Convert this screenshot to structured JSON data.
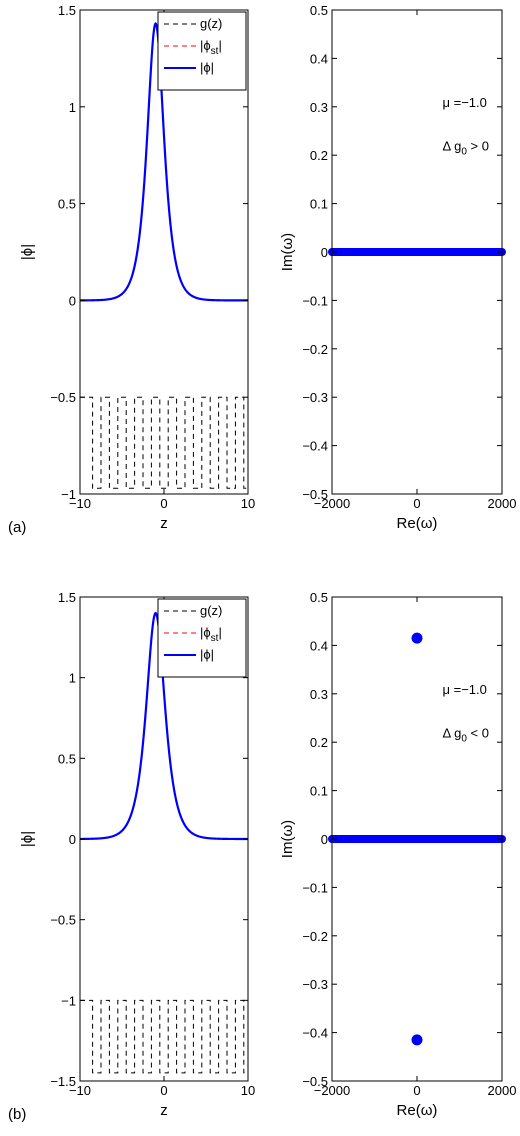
{
  "chart_data": [
    {
      "id": "a-left",
      "type": "line",
      "panel_label": "(a)",
      "xlabel": "z",
      "ylabel": "|ϕ|",
      "xlim": [
        -10,
        10
      ],
      "ylim": [
        -1,
        1.5
      ],
      "xticks": [
        -10,
        0,
        10
      ],
      "xtick_labels": [
        "−10",
        "0",
        "10"
      ],
      "yticks": [
        -1,
        -0.5,
        0,
        0.5,
        1,
        1.5
      ],
      "ytick_labels": [
        "−1",
        "−0.5",
        "0",
        "0.5",
        "1",
        "1.5"
      ],
      "grid": false,
      "legend_position": "top-right",
      "legend": [
        {
          "label": "g(z)",
          "color": "#000000",
          "style": "dashed"
        },
        {
          "label": "|ϕst|",
          "main": "|ϕ",
          "sub": "st",
          "tail": "|",
          "color": "#ff0000",
          "style": "dashed"
        },
        {
          "label": "|ϕ|",
          "color": "#0000ff",
          "style": "solid"
        }
      ],
      "series": [
        {
          "key": "phi",
          "color": "#0000ff",
          "peak_height": 1.43,
          "peak_center": -1.0,
          "width": 0.9,
          "baseline": 0.0
        },
        {
          "key": "g",
          "color": "#000000",
          "high": -0.5,
          "low": -0.97,
          "period": 2,
          "duty": 0.5,
          "start": -8.5
        }
      ]
    },
    {
      "id": "a-right",
      "type": "scatter",
      "xlabel": "Re(ω)",
      "ylabel": "Im(ω)",
      "xlim": [
        -2000,
        2000
      ],
      "ylim": [
        -0.5,
        0.5
      ],
      "xticks": [
        -2000,
        0,
        2000
      ],
      "xtick_labels": [
        "−2000",
        "0",
        "2000"
      ],
      "yticks": [
        -0.5,
        -0.4,
        -0.3,
        -0.2,
        -0.1,
        0,
        0.1,
        0.2,
        0.3,
        0.4,
        0.5
      ],
      "ytick_labels": [
        "−0.5",
        "−0.4",
        "−0.3",
        "−0.2",
        "−0.1",
        "0",
        "0.1",
        "0.2",
        "0.3",
        "0.4",
        "0.5"
      ],
      "grid": false,
      "annotations": [
        {
          "text": "μ =−1.0",
          "x": 1400,
          "y": 0.3
        },
        {
          "text": "Δ g",
          "sub": "0",
          "tail": " > 0",
          "x": 1400,
          "y": 0.21
        }
      ],
      "band": {
        "x_from": -2000,
        "x_to": 2000,
        "y": 0,
        "color": "#0000ff"
      },
      "points": []
    },
    {
      "id": "b-left",
      "type": "line",
      "panel_label": "(b)",
      "xlabel": "z",
      "ylabel": "|ϕ|",
      "xlim": [
        -10,
        10
      ],
      "ylim": [
        -1.5,
        1.5
      ],
      "xticks": [
        -10,
        0,
        10
      ],
      "xtick_labels": [
        "−10",
        "0",
        "10"
      ],
      "yticks": [
        -1.5,
        -1,
        -0.5,
        0,
        0.5,
        1,
        1.5
      ],
      "ytick_labels": [
        "−1.5",
        "−1",
        "−0.5",
        "0",
        "0.5",
        "1",
        "1.5"
      ],
      "grid": false,
      "legend_position": "top-right",
      "legend": [
        {
          "label": "g(z)",
          "color": "#000000",
          "style": "dashed"
        },
        {
          "label": "|ϕst|",
          "main": "|ϕ",
          "sub": "st",
          "tail": "|",
          "color": "#ff0000",
          "style": "dashed"
        },
        {
          "label": "|ϕ|",
          "color": "#0000ff",
          "style": "solid"
        }
      ],
      "series": [
        {
          "key": "phi",
          "color": "#0000ff",
          "peak_height": 1.4,
          "peak_center": -1.0,
          "width": 1.0,
          "baseline": 0.0
        },
        {
          "key": "g",
          "color": "#000000",
          "high": -1.0,
          "low": -1.45,
          "period": 2,
          "duty": 0.5,
          "start": -8.5
        }
      ]
    },
    {
      "id": "b-right",
      "type": "scatter",
      "xlabel": "Re(ω)",
      "ylabel": "Im(ω)",
      "xlim": [
        -2000,
        2000
      ],
      "ylim": [
        -0.5,
        0.5
      ],
      "xticks": [
        -2000,
        0,
        2000
      ],
      "xtick_labels": [
        "−2000",
        "0",
        "2000"
      ],
      "yticks": [
        -0.5,
        -0.4,
        -0.3,
        -0.2,
        -0.1,
        0,
        0.1,
        0.2,
        0.3,
        0.4,
        0.5
      ],
      "ytick_labels": [
        "−0.5",
        "−0.4",
        "−0.3",
        "−0.2",
        "−0.1",
        "0",
        "0.1",
        "0.2",
        "0.3",
        "0.4",
        "0.5"
      ],
      "grid": false,
      "annotations": [
        {
          "text": "μ =−1.0",
          "x": 1400,
          "y": 0.3
        },
        {
          "text": "Δ g",
          "sub": "0",
          "tail": " < 0",
          "x": 1400,
          "y": 0.21
        }
      ],
      "band": {
        "x_from": -2000,
        "x_to": 2000,
        "y": 0,
        "color": "#0000ff"
      },
      "points": [
        {
          "x": 0,
          "y": 0.415
        },
        {
          "x": 0,
          "y": -0.415
        }
      ]
    }
  ]
}
